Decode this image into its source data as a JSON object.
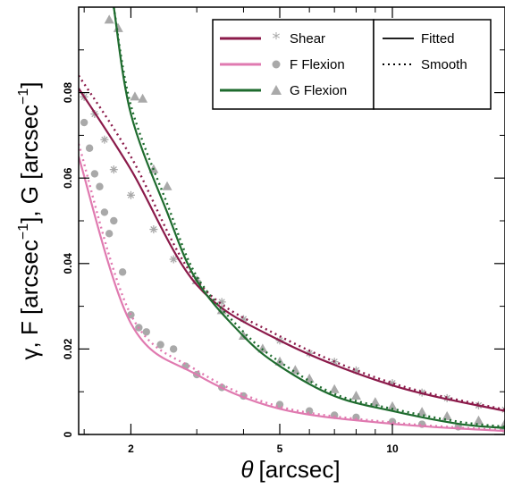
{
  "chart_data": {
    "type": "line",
    "xlabel_symbol": "θ",
    "xlabel_text": "[arcsec]",
    "ylabel_parts": [
      "γ, F [arcsec",
      "−1",
      "], G [arcsec",
      "−1",
      "]"
    ],
    "x_scale": "log",
    "xlim": [
      1.45,
      20
    ],
    "ylim": [
      0,
      0.1
    ],
    "x_ticks": [
      {
        "value": 2,
        "label": "2"
      },
      {
        "value": 5,
        "label": "5"
      },
      {
        "value": 10,
        "label": "10"
      }
    ],
    "y_ticks": [
      {
        "value": 0,
        "label": "0"
      },
      {
        "value": 0.02,
        "label": "0.02"
      },
      {
        "value": 0.04,
        "label": "0.04"
      },
      {
        "value": 0.06,
        "label": "0.06"
      },
      {
        "value": 0.08,
        "label": "0.08"
      }
    ],
    "colors": {
      "shear": "#8b1a4a",
      "f_flexion": "#e07ab0",
      "g_flexion": "#1e6b2e",
      "markers": "#a9a9a9"
    },
    "legend": {
      "placement": "top-right",
      "series_entries": [
        "Shear",
        "F Flexion",
        "G Flexion"
      ],
      "style_entries": [
        "Fitted",
        "Smooth"
      ]
    },
    "series": [
      {
        "name": "Shear",
        "marker": "asterisk",
        "fitted": {
          "x": [
            1.45,
            2,
            3,
            5,
            10,
            20
          ],
          "y": [
            0.081,
            0.062,
            0.035,
            0.022,
            0.0115,
            0.0055
          ]
        },
        "smooth": {
          "x": [
            1.45,
            2,
            3,
            5,
            10,
            20
          ],
          "y": [
            0.084,
            0.065,
            0.036,
            0.023,
            0.012,
            0.0058
          ]
        },
        "points": {
          "x": [
            1.5,
            1.6,
            1.7,
            1.8,
            2,
            2.3,
            2.6,
            3,
            3.5,
            4,
            5,
            6,
            7,
            8,
            10,
            12,
            14,
            17,
            20
          ],
          "y": [
            0.079,
            0.075,
            0.069,
            0.062,
            0.056,
            0.048,
            0.041,
            0.036,
            0.031,
            0.027,
            0.022,
            0.019,
            0.017,
            0.015,
            0.012,
            0.0098,
            0.0085,
            0.0068,
            0.0058
          ]
        }
      },
      {
        "name": "F Flexion",
        "marker": "circle",
        "fitted": {
          "x": [
            1.45,
            2,
            3,
            5,
            10,
            20
          ],
          "y": [
            0.065,
            0.026,
            0.014,
            0.006,
            0.0025,
            0.0008
          ]
        },
        "smooth": {
          "x": [
            1.45,
            2,
            3,
            5,
            10,
            20
          ],
          "y": [
            0.068,
            0.028,
            0.015,
            0.0065,
            0.0028,
            0.001
          ]
        },
        "points": {
          "x": [
            1.5,
            1.55,
            1.6,
            1.65,
            1.7,
            1.75,
            1.8,
            1.9,
            2.0,
            2.1,
            2.2,
            2.4,
            2.6,
            2.8,
            3.0,
            3.5,
            4,
            5,
            6,
            7,
            8,
            10,
            12,
            15,
            20
          ],
          "y": [
            0.073,
            0.067,
            0.061,
            0.058,
            0.052,
            0.047,
            0.05,
            0.038,
            0.028,
            0.025,
            0.024,
            0.021,
            0.02,
            0.016,
            0.014,
            0.011,
            0.009,
            0.007,
            0.0055,
            0.0045,
            0.004,
            0.003,
            0.0024,
            0.0018,
            0.0012
          ]
        }
      },
      {
        "name": "G Flexion",
        "marker": "triangle",
        "fitted": {
          "x": [
            1.8,
            2,
            2.5,
            3,
            4,
            5,
            7,
            10,
            15,
            20
          ],
          "y": [
            0.1,
            0.075,
            0.052,
            0.036,
            0.023,
            0.016,
            0.009,
            0.0055,
            0.0025,
            0.0015
          ]
        },
        "smooth": {
          "x": [
            1.8,
            2,
            2.5,
            3,
            4,
            5,
            7,
            10,
            15,
            20
          ],
          "y": [
            0.1,
            0.077,
            0.054,
            0.037,
            0.024,
            0.017,
            0.0095,
            0.006,
            0.003,
            0.0018
          ]
        },
        "points": {
          "x": [
            1.75,
            1.85,
            2.05,
            2.15,
            2.3,
            2.5,
            3,
            3.5,
            4,
            4.5,
            5,
            5.5,
            6,
            7,
            8,
            9,
            10,
            12,
            14,
            17,
            20
          ],
          "y": [
            0.097,
            0.095,
            0.079,
            0.0785,
            0.062,
            0.058,
            0.036,
            0.029,
            0.023,
            0.02,
            0.017,
            0.015,
            0.013,
            0.0105,
            0.009,
            0.0075,
            0.0065,
            0.0052,
            0.0042,
            0.0032,
            0.0025
          ]
        }
      }
    ]
  }
}
